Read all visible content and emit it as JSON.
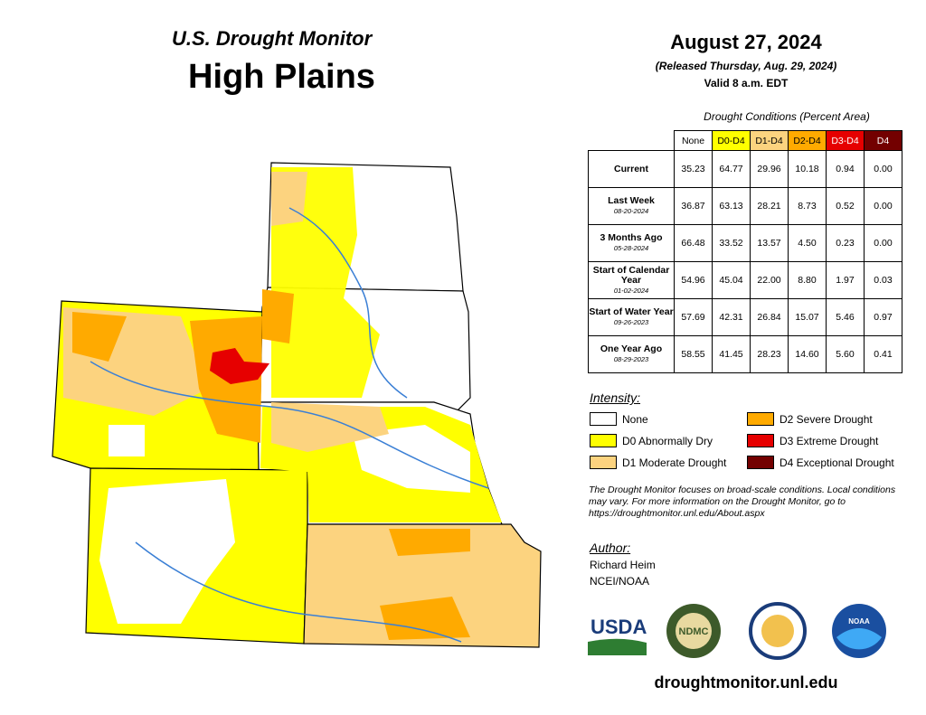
{
  "header": {
    "title": "U.S. Drought Monitor",
    "region": "High Plains",
    "date": "August 27, 2024",
    "released": "(Released Thursday, Aug. 29, 2024)",
    "valid": "Valid 8 a.m. EDT"
  },
  "table": {
    "caption": "Drought Conditions (Percent Area)",
    "columns": [
      {
        "label": "None",
        "color": "#ffffff",
        "text_color": "#000000"
      },
      {
        "label": "D0-D4",
        "color": "#ffff00",
        "text_color": "#000000"
      },
      {
        "label": "D1-D4",
        "color": "#fcd37f",
        "text_color": "#000000"
      },
      {
        "label": "D2-D4",
        "color": "#ffaa00",
        "text_color": "#000000"
      },
      {
        "label": "D3-D4",
        "color": "#e60000",
        "text_color": "#ffffff"
      },
      {
        "label": "D4",
        "color": "#730000",
        "text_color": "#ffffff"
      }
    ],
    "rows": [
      {
        "label": "Current",
        "values": [
          "35.23",
          "64.77",
          "29.96",
          "10.18",
          "0.94",
          "0.00"
        ]
      },
      {
        "label": "Last Week",
        "date": "08-20-2024",
        "values": [
          "36.87",
          "63.13",
          "28.21",
          "8.73",
          "0.52",
          "0.00"
        ]
      },
      {
        "label": "3 Months Ago",
        "date": "05-28-2024",
        "values": [
          "66.48",
          "33.52",
          "13.57",
          "4.50",
          "0.23",
          "0.00"
        ]
      },
      {
        "label": "Start of Calendar Year",
        "date": "01-02-2024",
        "values": [
          "54.96",
          "45.04",
          "22.00",
          "8.80",
          "1.97",
          "0.03"
        ]
      },
      {
        "label": "Start of Water Year",
        "date": "09-26-2023",
        "values": [
          "57.69",
          "42.31",
          "26.84",
          "15.07",
          "5.46",
          "0.97"
        ]
      },
      {
        "label": "One Year Ago",
        "date": "08-29-2023",
        "values": [
          "58.55",
          "41.45",
          "28.23",
          "14.60",
          "5.60",
          "0.41"
        ]
      }
    ]
  },
  "legend": {
    "title": "Intensity:",
    "items": [
      {
        "label": "None",
        "color": "#ffffff"
      },
      {
        "label": "D0 Abnormally Dry",
        "color": "#ffff00"
      },
      {
        "label": "D1 Moderate Drought",
        "color": "#fcd37f"
      },
      {
        "label": "D2 Severe Drought",
        "color": "#ffaa00"
      },
      {
        "label": "D3 Extreme Drought",
        "color": "#e60000"
      },
      {
        "label": "D4 Exceptional Drought",
        "color": "#730000"
      }
    ]
  },
  "note": "The Drought Monitor focuses on broad-scale conditions. Local conditions may vary. For more information on the Drought Monitor, go to https://droughtmonitor.unl.edu/About.aspx",
  "author": {
    "title": "Author:",
    "lines": [
      "Richard Heim",
      "NCEI/NOAA"
    ]
  },
  "logos": {
    "usda": "USDA",
    "ndmc": "NDMC",
    "noaa": "NOAA"
  },
  "website": "droughtmonitor.unl.edu"
}
